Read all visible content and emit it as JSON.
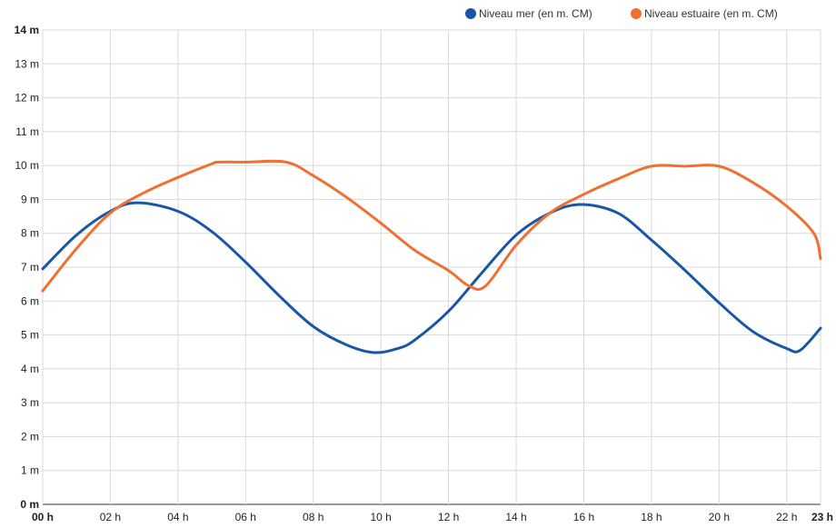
{
  "chart_data": {
    "type": "line",
    "xlim": [
      0,
      23
    ],
    "ylim": [
      0,
      14
    ],
    "grid": true,
    "legend_position": "top-right",
    "x_ticks": [
      {
        "value": 0,
        "label": "00 h",
        "bold": true
      },
      {
        "value": 2,
        "label": "02 h",
        "bold": false
      },
      {
        "value": 4,
        "label": "04 h",
        "bold": false
      },
      {
        "value": 6,
        "label": "06 h",
        "bold": false
      },
      {
        "value": 8,
        "label": "08 h",
        "bold": false
      },
      {
        "value": 10,
        "label": "10 h",
        "bold": false
      },
      {
        "value": 12,
        "label": "12 h",
        "bold": false
      },
      {
        "value": 14,
        "label": "14 h",
        "bold": false
      },
      {
        "value": 16,
        "label": "16 h",
        "bold": false
      },
      {
        "value": 18,
        "label": "18 h",
        "bold": false
      },
      {
        "value": 20,
        "label": "20 h",
        "bold": false
      },
      {
        "value": 22,
        "label": "22 h",
        "bold": false
      },
      {
        "value": 23,
        "label": "23 h",
        "bold": true
      }
    ],
    "y_ticks": [
      {
        "value": 0,
        "label": "0 m",
        "bold": true
      },
      {
        "value": 1,
        "label": "1 m",
        "bold": false
      },
      {
        "value": 2,
        "label": "2 m",
        "bold": false
      },
      {
        "value": 3,
        "label": "3 m",
        "bold": false
      },
      {
        "value": 4,
        "label": "4 m",
        "bold": false
      },
      {
        "value": 5,
        "label": "5 m",
        "bold": false
      },
      {
        "value": 6,
        "label": "6 m",
        "bold": false
      },
      {
        "value": 7,
        "label": "7 m",
        "bold": false
      },
      {
        "value": 8,
        "label": "8 m",
        "bold": false
      },
      {
        "value": 9,
        "label": "9 m",
        "bold": false
      },
      {
        "value": 10,
        "label": "10 m",
        "bold": false
      },
      {
        "value": 11,
        "label": "11 m",
        "bold": false
      },
      {
        "value": 12,
        "label": "12 m",
        "bold": false
      },
      {
        "value": 13,
        "label": "13 m",
        "bold": false
      },
      {
        "value": 14,
        "label": "14 m",
        "bold": true
      }
    ],
    "series": [
      {
        "name": "Niveau mer (en m. CM)",
        "color": "#1a56a8",
        "x": [
          0,
          1,
          2,
          2.8,
          4,
          5,
          6,
          7,
          8,
          9,
          9.8,
          10.5,
          11,
          12,
          13,
          14,
          15,
          15.9,
          17,
          18,
          19,
          20,
          21,
          22,
          22.4,
          23
        ],
        "y": [
          6.95,
          7.95,
          8.65,
          8.9,
          8.65,
          8.05,
          7.15,
          6.15,
          5.25,
          4.7,
          4.48,
          4.6,
          4.85,
          5.7,
          6.85,
          7.95,
          8.6,
          8.85,
          8.6,
          7.8,
          6.9,
          5.95,
          5.1,
          4.6,
          4.55,
          5.2
        ]
      },
      {
        "name": "Niveau estuaire (en m. CM)",
        "color": "#f07031",
        "x": [
          0,
          1,
          2,
          3,
          4,
          5,
          5.2,
          6,
          7.2,
          8,
          9,
          10,
          11,
          12,
          12.6,
          13.1,
          14,
          15,
          16,
          17,
          18,
          19,
          20,
          21,
          22,
          22.8,
          23
        ],
        "y": [
          6.3,
          7.55,
          8.6,
          9.2,
          9.65,
          10.05,
          10.1,
          10.1,
          10.1,
          9.7,
          9.05,
          8.3,
          7.5,
          6.9,
          6.45,
          6.45,
          7.65,
          8.6,
          9.15,
          9.6,
          9.98,
          9.98,
          9.98,
          9.5,
          8.8,
          8.0,
          7.25
        ]
      }
    ]
  }
}
